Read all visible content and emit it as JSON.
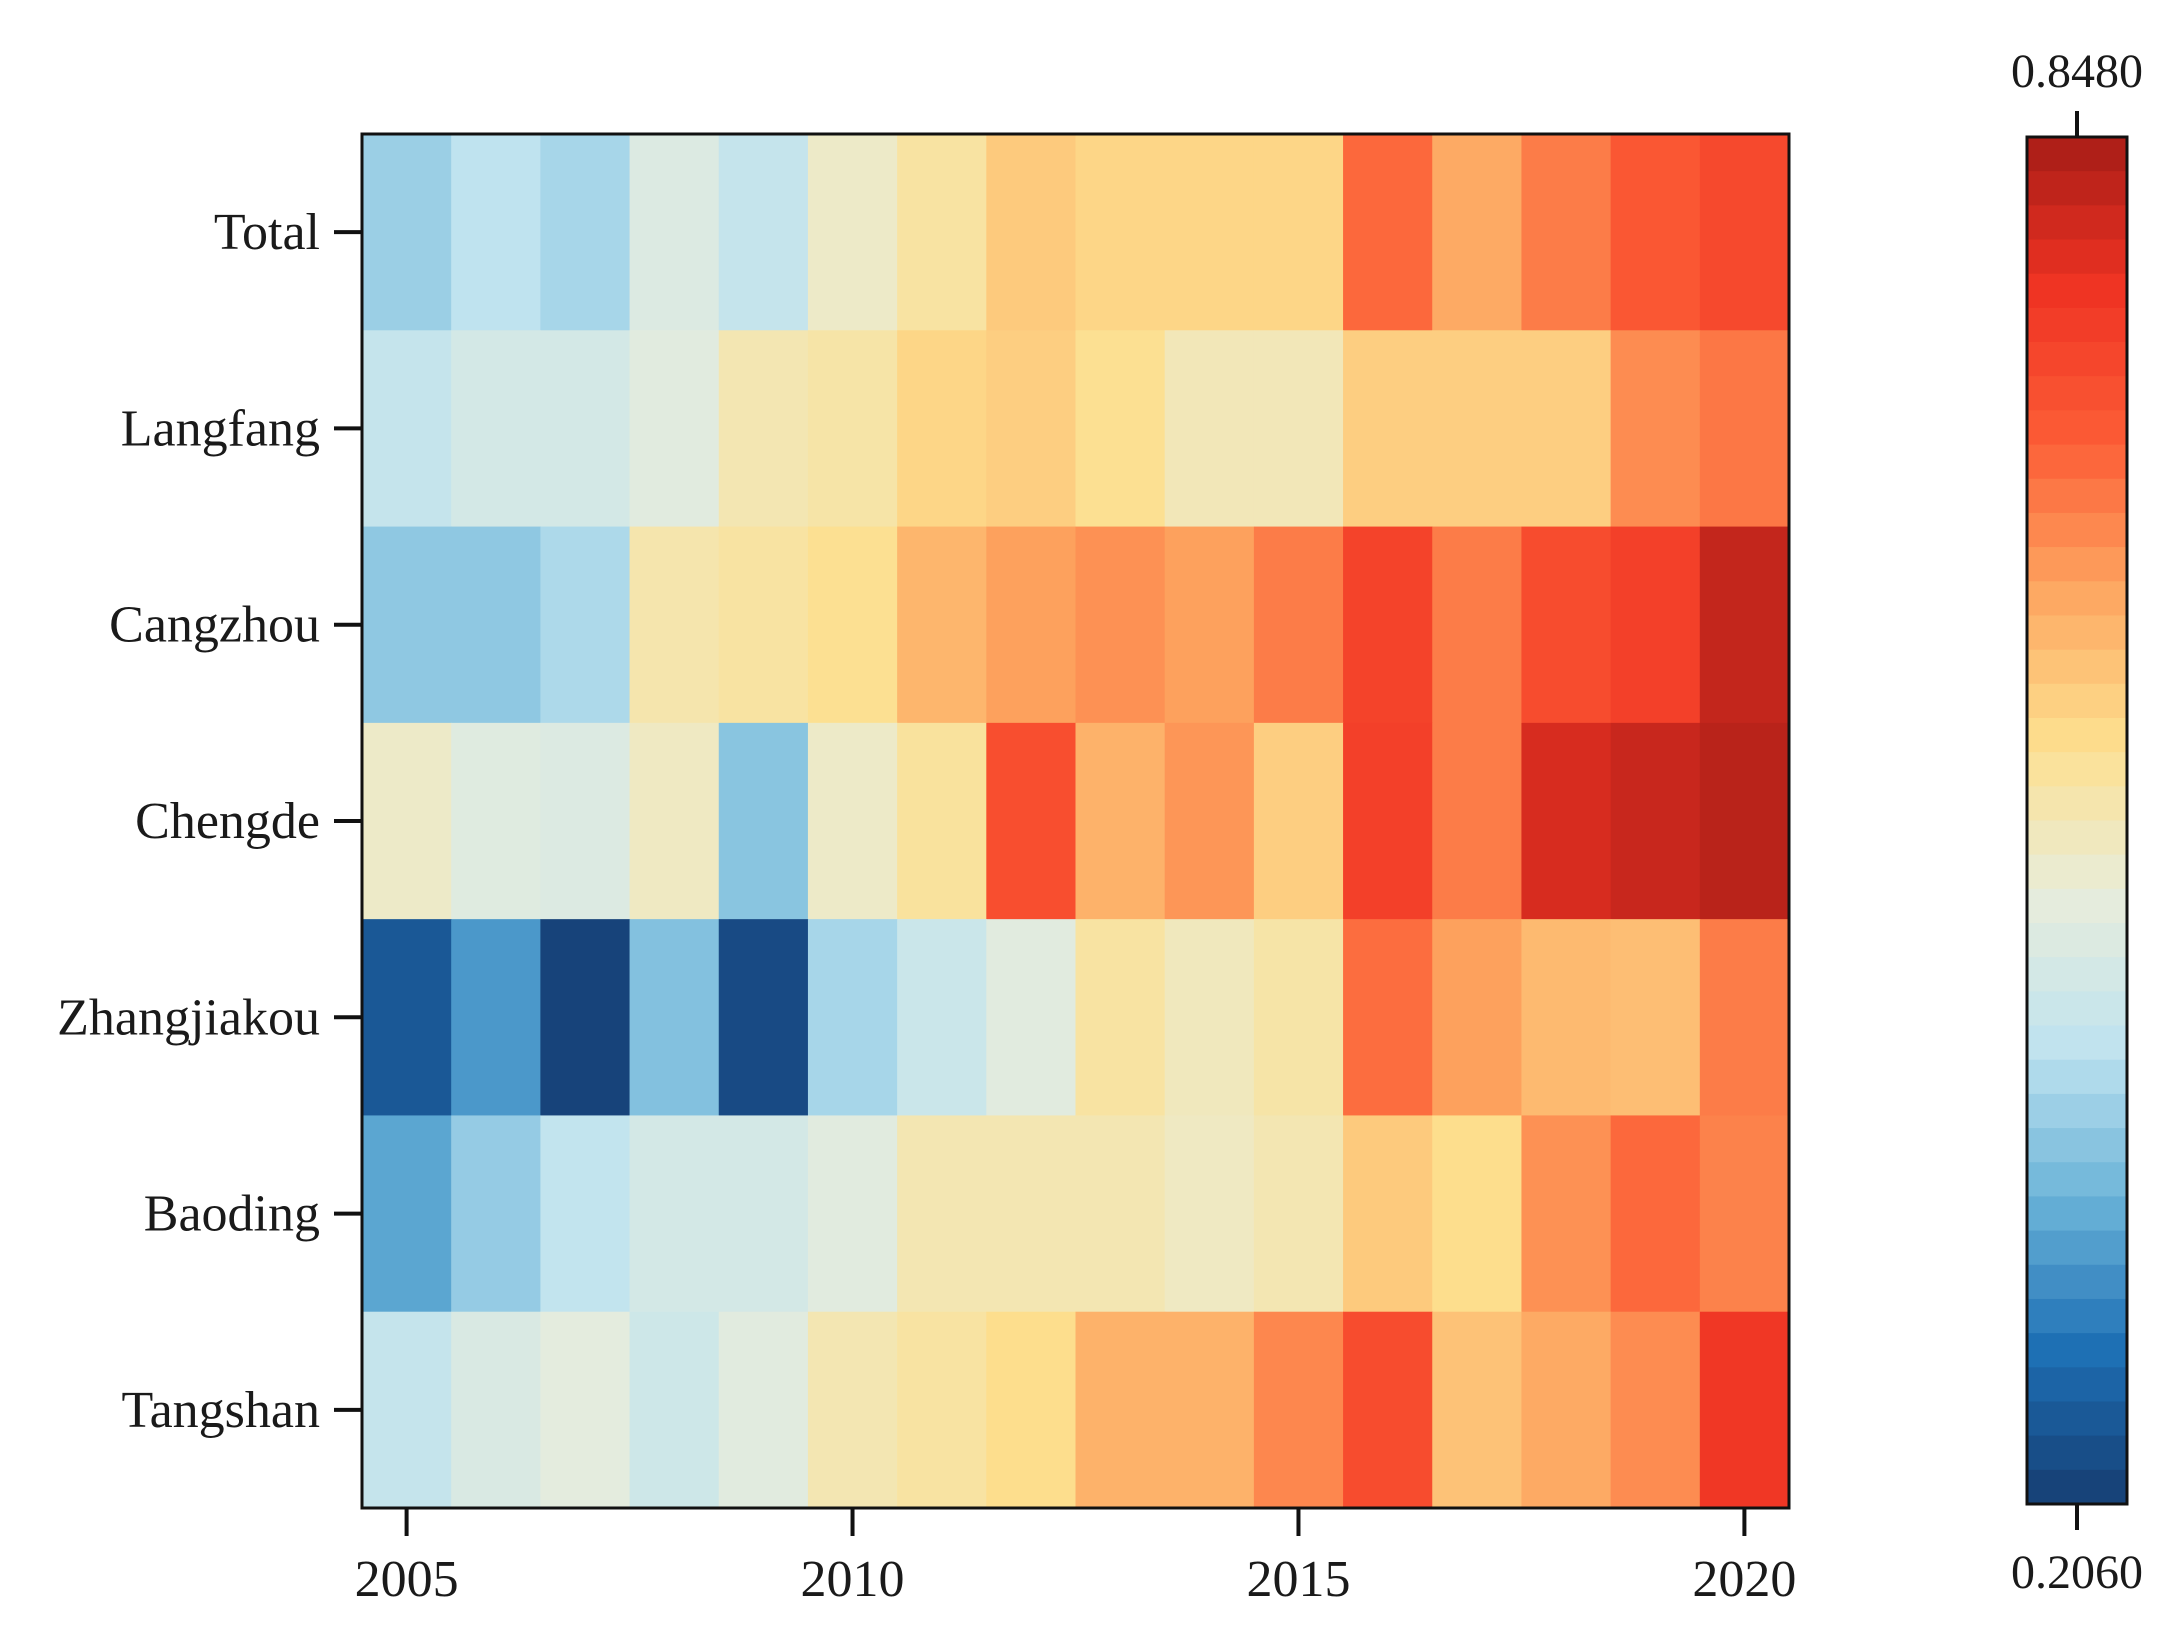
{
  "chart_data": {
    "type": "heatmap",
    "title": "",
    "xlabel": "",
    "ylabel": "",
    "x": [
      2005,
      2006,
      2007,
      2008,
      2009,
      2010,
      2011,
      2012,
      2013,
      2014,
      2015,
      2016,
      2017,
      2018,
      2019,
      2020
    ],
    "x_tick_labels": [
      "2005",
      "2010",
      "2015",
      "2020"
    ],
    "y": [
      "Total",
      "Langfang",
      "Cangzhou",
      "Chengde",
      "Zhangjiakou",
      "Baoding",
      "Tangshan"
    ],
    "values": [
      [
        0.39,
        0.42,
        0.4,
        0.47,
        0.43,
        0.51,
        0.545,
        0.59,
        0.575,
        0.575,
        0.575,
        0.695,
        0.63,
        0.675,
        0.715,
        0.74
      ],
      [
        0.43,
        0.455,
        0.455,
        0.48,
        0.53,
        0.54,
        0.575,
        0.585,
        0.56,
        0.525,
        0.525,
        0.585,
        0.585,
        0.585,
        0.66,
        0.68
      ],
      [
        0.38,
        0.38,
        0.405,
        0.535,
        0.545,
        0.56,
        0.615,
        0.64,
        0.655,
        0.64,
        0.675,
        0.75,
        0.675,
        0.735,
        0.755,
        0.82
      ],
      [
        0.51,
        0.475,
        0.47,
        0.515,
        0.375,
        0.51,
        0.55,
        0.73,
        0.62,
        0.65,
        0.585,
        0.755,
        0.675,
        0.8,
        0.815,
        0.83
      ],
      [
        0.245,
        0.32,
        0.215,
        0.37,
        0.225,
        0.4,
        0.44,
        0.48,
        0.545,
        0.52,
        0.54,
        0.69,
        0.64,
        0.61,
        0.605,
        0.675
      ],
      [
        0.335,
        0.385,
        0.425,
        0.455,
        0.455,
        0.48,
        0.53,
        0.53,
        0.53,
        0.515,
        0.53,
        0.59,
        0.565,
        0.655,
        0.695,
        0.67
      ],
      [
        0.43,
        0.465,
        0.485,
        0.445,
        0.48,
        0.53,
        0.545,
        0.565,
        0.62,
        0.62,
        0.665,
        0.735,
        0.6,
        0.63,
        0.66,
        0.77
      ]
    ],
    "colorbar": {
      "min": 0.206,
      "max": 0.848,
      "min_label": "0.2060",
      "max_label": "0.8480",
      "levels": 40,
      "colormap": "RdYlBu_r",
      "colors": [
        "#163d72",
        "#1d6fb4",
        "#6ab3d8",
        "#bfe3ef",
        "#e8eddc",
        "#fde08f",
        "#fda761",
        "#fc5d36",
        "#ef3323",
        "#a71d17"
      ]
    },
    "grid": false,
    "legend": "colorbar-right"
  }
}
